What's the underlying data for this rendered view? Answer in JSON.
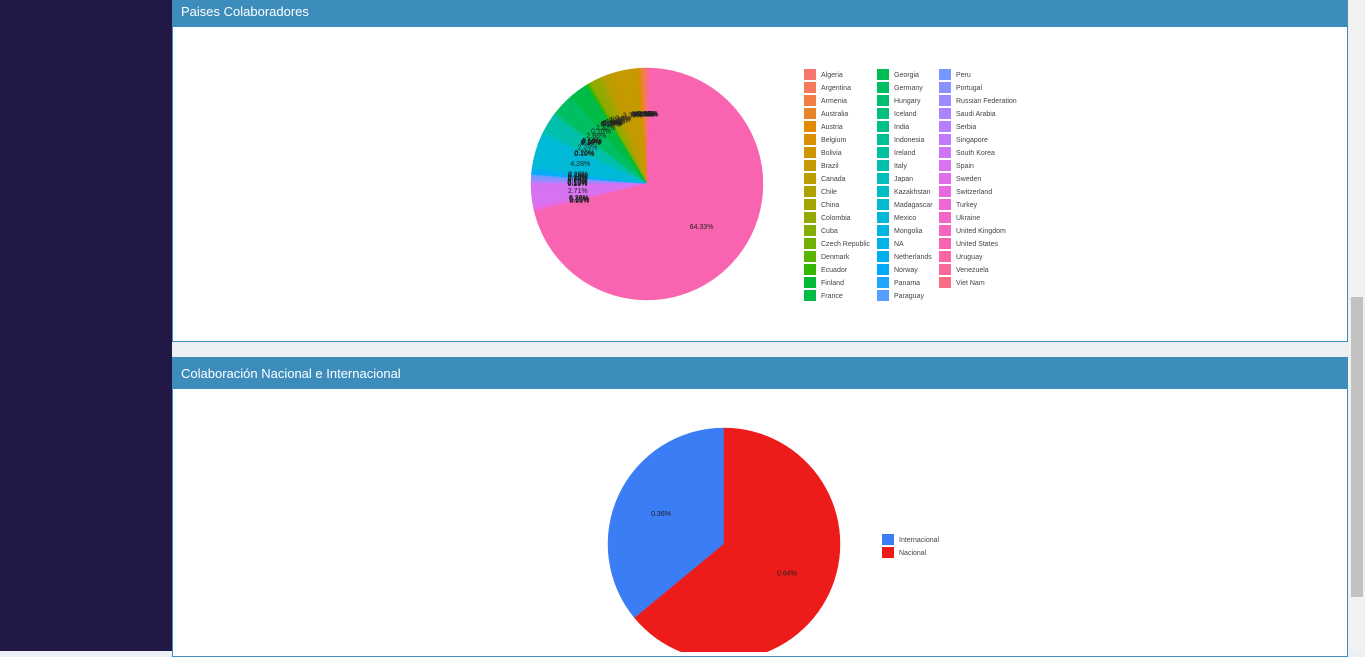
{
  "chart_data": [
    {
      "type": "pie",
      "title": "Paises Colaboradores",
      "categories": [
        "Algeria",
        "Argentina",
        "Armenia",
        "Australia",
        "Austria",
        "Belgium",
        "Bolivia",
        "Brazil",
        "Canada",
        "Chile",
        "China",
        "Colombia",
        "Cuba",
        "Czech Republic",
        "Denmark",
        "Ecuador",
        "Finland",
        "France",
        "Georgia",
        "Germany",
        "Hungary",
        "Iceland",
        "India",
        "Indonesia",
        "Ireland",
        "Italy",
        "Japan",
        "Kazakhstan",
        "Madagascar",
        "Mexico",
        "Mongolia",
        "NA",
        "Netherlands",
        "Norway",
        "Panama",
        "Paraguay",
        "Peru",
        "Portugal",
        "Russian Federation",
        "Saudi Arabia",
        "Serbia",
        "Singapore",
        "South Korea",
        "Spain",
        "Sweden",
        "Switzerland",
        "Turkey",
        "Ukraine",
        "United Kingdom",
        "United States",
        "Uruguay",
        "Venezuela",
        "Viet Nam"
      ],
      "values": [
        0.1,
        0.41,
        0.1,
        0.28,
        0.15,
        0.2,
        0.1,
        3.35,
        0.8,
        0.46,
        0.36,
        1.01,
        0.15,
        0.1,
        0.15,
        0.26,
        0.1,
        2.32,
        0.1,
        2.66,
        0.1,
        0.1,
        0.2,
        0.1,
        0.1,
        2.24,
        0.26,
        0.1,
        0.1,
        4.28,
        0.1,
        0.28,
        0.28,
        0.15,
        0.1,
        0.1,
        0.28,
        0.28,
        0.15,
        0.1,
        0.1,
        0.1,
        0.15,
        2.71,
        0.2,
        0.2,
        0.1,
        0.1,
        0.28,
        64.33,
        0.1,
        0.15,
        0.1
      ],
      "value_labels": [
        "0.10%",
        "0.41%",
        "0.10%",
        "0.28%",
        "0.15%",
        "0.20%",
        "0.10%",
        "3.35%",
        "0.8%",
        "0.46%",
        "0.36%",
        "1.01%",
        "0.15%",
        "0.10%",
        "0.15%",
        "0.26%",
        "0.10%",
        "2.32%",
        "0.10%",
        "2.66%",
        "0.10%",
        "0.10%",
        "0.20%",
        "0.10%",
        "0.10%",
        "2.24%",
        "0.26%",
        "0.10%",
        "0.10%",
        "4.28%",
        "0.10%",
        "0.28%",
        "0.28%",
        "0.15%",
        "0.10%",
        "0.10%",
        "0.28%",
        "0.28%",
        "0.15%",
        "0.10%",
        "0.10%",
        "0.10%",
        "0.15%",
        "2.71%",
        "0.20%",
        "0.20%",
        "0.10%",
        "0.10%",
        "0.28%",
        "64.33%",
        "0.10%",
        "0.15%",
        "0.10%"
      ],
      "colors": [
        "#F8766D",
        "#F47A5C",
        "#EF7F47",
        "#E8842C",
        "#E08A00",
        "#D89000",
        "#CF9400",
        "#C59900",
        "#BA9E00",
        "#AEA200",
        "#A1A500",
        "#93A900",
        "#83AD00",
        "#70B000",
        "#58B400",
        "#35B700",
        "#00BA38",
        "#00BB45",
        "#00BD54",
        "#00BE62",
        "#00BF70",
        "#00C07D",
        "#00C189",
        "#00C195",
        "#00C0A1",
        "#00C0AD",
        "#00BFB8",
        "#00BEC3",
        "#00BCCD",
        "#00B9D7",
        "#00B6E0",
        "#00B2E9",
        "#00AEF2",
        "#00A9FA",
        "#1FA4FF",
        "#569EFF",
        "#7597FF",
        "#8B91FF",
        "#9C8AFF",
        "#AA84FF",
        "#B77EFF",
        "#C379FE",
        "#CD75F7",
        "#D772F0",
        "#E06EE8",
        "#E76BDF",
        "#ED68D5",
        "#F266CA",
        "#F665BE",
        "#F964B1",
        "#FB66A4",
        "#FB6996",
        "#FA6D87"
      ]
    },
    {
      "type": "pie",
      "title": "Colaboración Nacional e Internacional",
      "categories": [
        "Internacional",
        "Nacional"
      ],
      "values": [
        0.36,
        0.64
      ],
      "value_labels": [
        "0.36%",
        "0.64%"
      ],
      "colors": [
        "#3A7DF4",
        "#EE1B1B"
      ]
    }
  ]
}
